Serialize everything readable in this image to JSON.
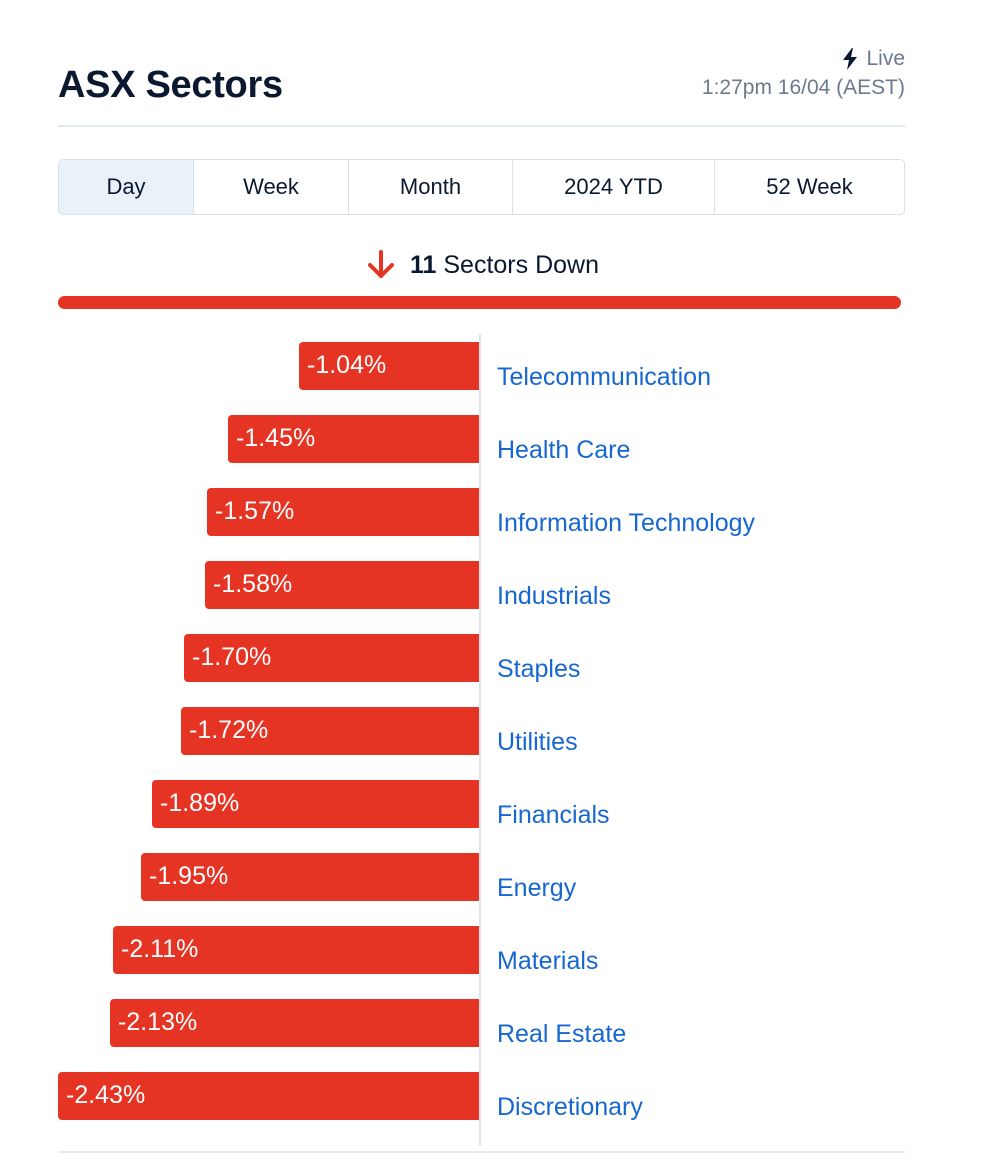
{
  "header": {
    "title": "ASX Sectors",
    "live_label": "Live",
    "timestamp": "1:27pm 16/04 (AEST)"
  },
  "tabs": [
    {
      "label": "Day",
      "active": true
    },
    {
      "label": "Week",
      "active": false
    },
    {
      "label": "Month",
      "active": false
    },
    {
      "label": "2024 YTD",
      "active": false
    },
    {
      "label": "52 Week",
      "active": false
    }
  ],
  "summary": {
    "count": "11",
    "text": "Sectors Down",
    "direction": "down"
  },
  "colors": {
    "negative": "#e53424",
    "link": "#1767d0",
    "text": "#0b1930",
    "muted": "#6b7a8c"
  },
  "chart_data": {
    "type": "bar",
    "orientation": "horizontal",
    "categories": [
      "Telecommunication",
      "Health Care",
      "Information Technology",
      "Industrials",
      "Staples",
      "Utilities",
      "Financials",
      "Energy",
      "Materials",
      "Real Estate",
      "Discretionary"
    ],
    "values": [
      -1.04,
      -1.45,
      -1.57,
      -1.58,
      -1.7,
      -1.72,
      -1.89,
      -1.95,
      -2.11,
      -2.13,
      -2.43
    ],
    "labels": [
      "-1.04%",
      "-1.45%",
      "-1.57%",
      "-1.58%",
      "-1.70%",
      "-1.72%",
      "-1.89%",
      "-1.95%",
      "-2.11%",
      "-2.13%",
      "-2.43%"
    ],
    "unit": "%",
    "title": "",
    "xlabel": "",
    "ylabel": ""
  }
}
